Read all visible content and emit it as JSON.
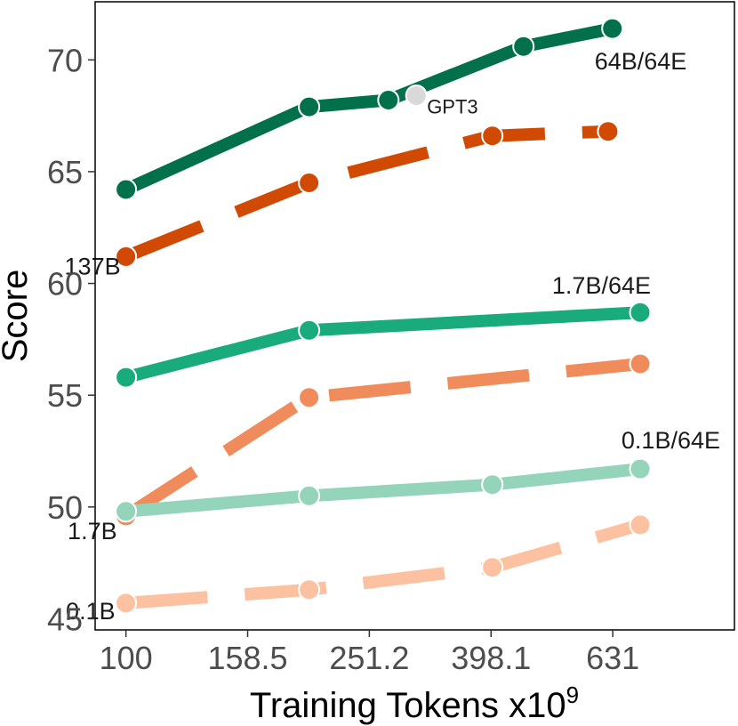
{
  "chart_data": {
    "type": "line",
    "xlabel": "Training Tokens x10",
    "xlabel_superscript": "9",
    "ylabel": "Score",
    "x_scale": "log",
    "xlim": [
      89,
      1000
    ],
    "ylim": [
      44.5,
      72.6
    ],
    "x_ticks": [
      100,
      158.5,
      251.2,
      398.1,
      631
    ],
    "x_tick_labels": [
      "100",
      "158.5",
      "251.2",
      "398.1",
      "631"
    ],
    "y_ticks": [
      45,
      50,
      55,
      60,
      65,
      70
    ],
    "y_tick_labels": [
      "45",
      "50",
      "55",
      "60",
      "65",
      "70"
    ],
    "grid": false,
    "series": [
      {
        "name": "64B/64E",
        "label": "64B/64E",
        "color": "#02704a",
        "dash": "solid",
        "points": [
          [
            100,
            64.2
          ],
          [
            200,
            67.9
          ],
          [
            270,
            68.2
          ],
          [
            450,
            70.6
          ],
          [
            630,
            71.4
          ]
        ]
      },
      {
        "name": "137B",
        "label": "137B",
        "color": "#d04a04",
        "dash": "dashed",
        "points": [
          [
            100,
            61.2
          ],
          [
            200,
            64.5
          ],
          [
            400,
            66.6
          ],
          [
            620,
            66.8
          ]
        ]
      },
      {
        "name": "1.7B/64E",
        "label": "1.7B/64E",
        "color": "#1aab7c",
        "dash": "solid",
        "points": [
          [
            100,
            55.8
          ],
          [
            200,
            57.9
          ],
          [
            700,
            58.7
          ]
        ]
      },
      {
        "name": "1.7B",
        "label": "1.7B",
        "color": "#f08c5c",
        "dash": "dashed",
        "points": [
          [
            100,
            49.6
          ],
          [
            200,
            54.9
          ],
          [
            700,
            56.4
          ]
        ]
      },
      {
        "name": "0.1B/64E",
        "label": "0.1B/64E",
        "color": "#93d4bb",
        "dash": "solid",
        "points": [
          [
            100,
            49.8
          ],
          [
            200,
            50.5
          ],
          [
            400,
            51.0
          ],
          [
            700,
            51.7
          ]
        ]
      },
      {
        "name": "0.1B",
        "label": "0.1B",
        "color": "#fcc1a0",
        "dash": "dashed",
        "points": [
          [
            100,
            45.7
          ],
          [
            200,
            46.3
          ],
          [
            400,
            47.3
          ],
          [
            700,
            49.2
          ]
        ]
      }
    ],
    "annotations": [
      {
        "text": "GPT3",
        "x": 300,
        "y": 68.4,
        "color": "#d9d9d9"
      }
    ]
  }
}
